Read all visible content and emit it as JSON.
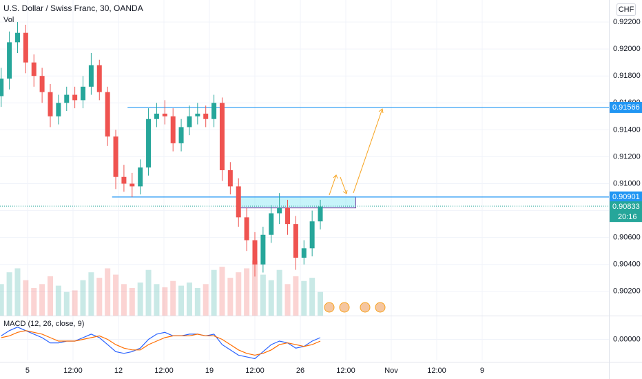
{
  "chart_data": {
    "type": "candlestick",
    "title": "U.S. Dollar / Swiss Franc, 30, OANDA",
    "volume_label": "Vol",
    "currency": "CHF",
    "colors": {
      "up": "#26a69a",
      "down": "#ef5350"
    },
    "grid": true,
    "x": [
      -0.29,
      -0.2,
      -0.11,
      -0.02,
      0.07,
      0.16,
      0.25,
      0.34,
      0.43,
      0.52,
      0.61,
      0.7,
      0.79,
      0.88,
      0.97,
      1.06,
      1.15,
      1.24,
      1.33,
      1.42,
      1.51,
      1.6,
      1.69,
      1.78,
      1.87,
      1.96,
      2.05,
      2.14,
      2.23,
      2.32,
      2.41,
      2.5,
      2.59,
      2.68,
      2.77,
      2.86,
      2.95,
      3.04,
      3.13,
      3.22
    ],
    "open": [
      0.9165,
      0.9178,
      0.9205,
      0.9212,
      0.919,
      0.918,
      0.9168,
      0.915,
      0.916,
      0.9166,
      0.9162,
      0.9172,
      0.9188,
      0.9168,
      0.9135,
      0.9105,
      0.91,
      0.9098,
      0.9112,
      0.9148,
      0.9152,
      0.915,
      0.913,
      0.9142,
      0.915,
      0.9152,
      0.9148,
      0.916,
      0.911,
      0.9098,
      0.9075,
      0.9058,
      0.904,
      0.9062,
      0.9078,
      0.9082,
      0.907,
      0.9045,
      0.9052,
      0.9072
    ],
    "high": [
      0.9186,
      0.9213,
      0.922,
      0.9218,
      0.9196,
      0.9186,
      0.9174,
      0.9166,
      0.9172,
      0.9172,
      0.918,
      0.9197,
      0.9192,
      0.9172,
      0.914,
      0.9114,
      0.9108,
      0.9118,
      0.9156,
      0.916,
      0.9162,
      0.9156,
      0.9148,
      0.9158,
      0.916,
      0.9158,
      0.9166,
      0.9164,
      0.9116,
      0.9104,
      0.9082,
      0.9064,
      0.9068,
      0.9084,
      0.9093,
      0.9088,
      0.9076,
      0.9058,
      0.908,
      0.9088
    ],
    "low": [
      0.9157,
      0.917,
      0.9197,
      0.9182,
      0.9172,
      0.916,
      0.9142,
      0.9144,
      0.9154,
      0.9156,
      0.9156,
      0.9166,
      0.9162,
      0.9128,
      0.9096,
      0.9094,
      0.909,
      0.9092,
      0.9106,
      0.9142,
      0.9144,
      0.9124,
      0.9124,
      0.9136,
      0.9144,
      0.9142,
      0.9142,
      0.9102,
      0.9092,
      0.9068,
      0.905,
      0.9031,
      0.9034,
      0.9056,
      0.907,
      0.9062,
      0.9036,
      0.904,
      0.9046,
      0.9066
    ],
    "close": [
      0.9178,
      0.9205,
      0.9212,
      0.919,
      0.918,
      0.9168,
      0.915,
      0.916,
      0.9166,
      0.9162,
      0.9172,
      0.9188,
      0.9168,
      0.9135,
      0.9105,
      0.91,
      0.9098,
      0.9112,
      0.9148,
      0.9152,
      0.915,
      0.913,
      0.9142,
      0.915,
      0.9152,
      0.9148,
      0.916,
      0.911,
      0.9098,
      0.9075,
      0.9058,
      0.904,
      0.9062,
      0.9078,
      0.9082,
      0.907,
      0.9045,
      0.9052,
      0.9072,
      0.9083
    ],
    "volume": [
      40,
      55,
      60,
      45,
      35,
      40,
      50,
      38,
      30,
      32,
      45,
      55,
      48,
      60,
      52,
      40,
      35,
      42,
      58,
      40,
      36,
      44,
      38,
      42,
      35,
      40,
      58,
      62,
      48,
      55,
      60,
      70,
      52,
      45,
      58,
      40,
      50,
      44,
      48,
      30
    ],
    "xlim": [
      -0.303,
      6.394
    ],
    "xticks": [
      {
        "value": 0,
        "label": "5"
      },
      {
        "value": 0.5,
        "label": "12:00"
      },
      {
        "value": 1,
        "label": "12"
      },
      {
        "value": 1.5,
        "label": "12:00"
      },
      {
        "value": 2,
        "label": "19"
      },
      {
        "value": 2.5,
        "label": "12:00"
      },
      {
        "value": 3,
        "label": "26"
      },
      {
        "value": 3.5,
        "label": "12:00"
      },
      {
        "value": 4,
        "label": "Nov"
      },
      {
        "value": 4.5,
        "label": "12:00"
      },
      {
        "value": 5,
        "label": "9"
      }
    ],
    "ylim": [
      0.9002,
      0.92364
    ],
    "yticks": [
      {
        "value": 0.922,
        "label": "0.92200"
      },
      {
        "value": 0.92,
        "label": "0.92000"
      },
      {
        "value": 0.918,
        "label": "0.91800"
      },
      {
        "value": 0.916,
        "label": "0.91600"
      },
      {
        "value": 0.914,
        "label": "0.91400"
      },
      {
        "value": 0.912,
        "label": "0.91200"
      },
      {
        "value": 0.91,
        "label": "0.91000"
      },
      {
        "value": 0.908,
        "label": "0.90800"
      },
      {
        "value": 0.906,
        "label": "0.90600"
      },
      {
        "value": 0.904,
        "label": "0.90400"
      },
      {
        "value": 0.902,
        "label": "0.90200"
      }
    ],
    "price_lines": [
      {
        "value": 0.91566,
        "from": 1.1,
        "color": "#2196f3"
      },
      {
        "value": 0.90901,
        "from": 0.93,
        "color": "#2196f3"
      }
    ],
    "zone": {
      "x": [
        2.31,
        3.61
      ],
      "y": [
        0.9082,
        0.90901
      ]
    },
    "last_price": 0.90833,
    "countdown": "20:16",
    "macd": {
      "label": "MACD (12, 26, close, 9)",
      "macd_color": "#2962ff",
      "signal_color": "#ff6d00",
      "macd": [
        0.0002,
        0.0005,
        0.0007,
        0.0005,
        0.0003,
        0.0001,
        -0.0002,
        -0.0002,
        -0.0001,
        -0.0001,
        0.0001,
        0.0003,
        0.0001,
        -0.0003,
        -0.0007,
        -0.0008,
        -0.0007,
        -0.0005,
        0,
        0.0003,
        0.0004,
        0.0002,
        0.0002,
        0.0003,
        0.0003,
        0.0002,
        0.0003,
        -0.0003,
        -0.0006,
        -0.0009,
        -0.001,
        -0.0011,
        -0.0007,
        -0.0003,
        -0.0001,
        -0.0002,
        -0.0005,
        -0.0004,
        -0.0001,
        0.0001
      ],
      "signal": [
        0.0001,
        0.0002,
        0.0004,
        0.0005,
        0.0004,
        0.0003,
        0.0001,
        -0.0001,
        -0.0001,
        -0.0001,
        0,
        0.0001,
        0.0002,
        0,
        -0.0003,
        -0.0005,
        -0.0006,
        -0.0006,
        -0.0003,
        -0.0001,
        0.0001,
        0.0002,
        0.0002,
        0.0002,
        0.0003,
        0.0002,
        0.0002,
        0,
        -0.0003,
        -0.0006,
        -0.0008,
        -0.0009,
        -0.0008,
        -0.0006,
        -0.0003,
        -0.0002,
        -0.0003,
        -0.0004,
        -0.0003,
        -0.0001
      ],
      "ylim": [
        -0.0012,
        0.0012
      ],
      "yticks": [
        {
          "value": 0,
          "label": "0.00000"
        }
      ]
    }
  }
}
